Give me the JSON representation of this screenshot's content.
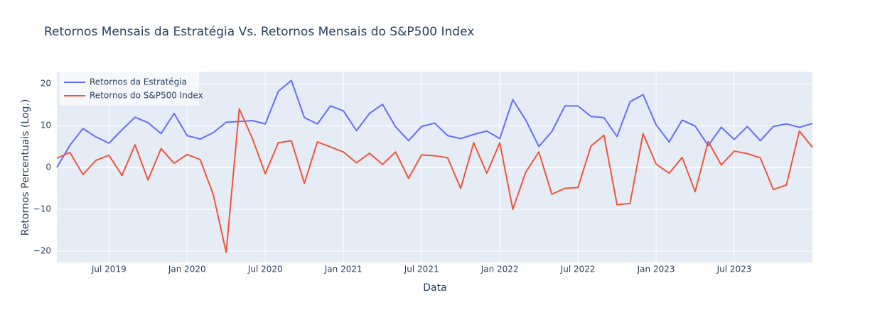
{
  "chart_data": {
    "type": "line",
    "title": "Retornos Mensais da Estratégia Vs. Retornos Mensais do S&P500 Index",
    "x_label": "Data",
    "y_label": "Retornos Percentuais  (Log.)",
    "x": [
      "2019-02",
      "2019-03",
      "2019-04",
      "2019-05",
      "2019-06",
      "2019-07",
      "2019-08",
      "2019-09",
      "2019-10",
      "2019-11",
      "2019-12",
      "2020-01",
      "2020-02",
      "2020-03",
      "2020-04",
      "2020-05",
      "2020-06",
      "2020-07",
      "2020-08",
      "2020-09",
      "2020-10",
      "2020-11",
      "2020-12",
      "2021-01",
      "2021-02",
      "2021-03",
      "2021-04",
      "2021-05",
      "2021-06",
      "2021-07",
      "2021-08",
      "2021-09",
      "2021-10",
      "2021-11",
      "2021-12",
      "2022-01",
      "2022-02",
      "2022-03",
      "2022-04",
      "2022-05",
      "2022-06",
      "2022-07",
      "2022-08",
      "2022-09",
      "2022-10",
      "2022-11",
      "2022-12",
      "2023-01",
      "2023-02",
      "2023-03",
      "2023-04",
      "2023-05",
      "2023-06",
      "2023-07",
      "2023-08",
      "2023-09",
      "2023-10",
      "2023-11",
      "2023-12"
    ],
    "series": [
      {
        "name": "Retornos da Estratégia",
        "color": "#636efa",
        "values": [
          0,
          5.3,
          9.3,
          7.3,
          5.8,
          9.0,
          12.0,
          10.7,
          8.1,
          12.9,
          7.6,
          6.8,
          8.3,
          10.8,
          11.0,
          11.2,
          10.4,
          18.2,
          20.8,
          11.9,
          10.4,
          14.7,
          13.5,
          8.8,
          12.9,
          15.1,
          9.7,
          6.4,
          9.8,
          10.6,
          7.6,
          6.9,
          7.9,
          8.7,
          6.9,
          16.2,
          11.3,
          5.0,
          8.6,
          14.7,
          14.7,
          12.2,
          11.9,
          7.4,
          15.7,
          17.4,
          10.2,
          6.1,
          11.3,
          9.9,
          5.2,
          9.6,
          6.7,
          9.8,
          6.4,
          9.8,
          10.4,
          9.6,
          10.5
        ]
      },
      {
        "name": "Retornos do S&P500 Index",
        "color": "#ef553b",
        "values": [
          2.2,
          3.6,
          -1.7,
          1.7,
          2.9,
          -1.9,
          5.4,
          -3.0,
          4.5,
          1.0,
          3.1,
          1.9,
          -6.4,
          -20.3,
          14.0,
          7.0,
          -1.5,
          5.9,
          6.4,
          -3.8,
          6.1,
          4.9,
          3.7,
          1.1,
          3.4,
          0.7,
          3.7,
          -2.6,
          3.0,
          2.8,
          2.3,
          -5.0,
          5.9,
          -1.4,
          5.9,
          -10.0,
          -1.1,
          3.7,
          -6.4,
          -5.0,
          -4.8,
          5.1,
          7.7,
          -8.9,
          -8.6,
          8.1,
          0.8,
          -1.4,
          2.4,
          -5.8,
          6.2,
          0.6,
          3.9,
          3.3,
          2.3,
          -5.3,
          -4.2,
          8.7,
          4.8
        ]
      }
    ],
    "xlim": [
      "2019-02",
      "2023-12"
    ],
    "xticks": [
      {
        "value": "2019-07",
        "label": "Jul 2019"
      },
      {
        "value": "2020-01",
        "label": "Jan 2020"
      },
      {
        "value": "2020-07",
        "label": "Jul 2020"
      },
      {
        "value": "2021-01",
        "label": "Jan 2021"
      },
      {
        "value": "2021-07",
        "label": "Jul 2021"
      },
      {
        "value": "2022-01",
        "label": "Jan 2022"
      },
      {
        "value": "2022-07",
        "label": "Jul 2022"
      },
      {
        "value": "2023-01",
        "label": "Jan 2023"
      },
      {
        "value": "2023-07",
        "label": "Jul 2023"
      }
    ],
    "ylim": [
      -22.7,
      22.9
    ],
    "yticks": [
      {
        "value": -20,
        "label": "−20"
      },
      {
        "value": -10,
        "label": "−10"
      },
      0,
      10,
      20
    ],
    "grid": true,
    "legend": "top-left"
  }
}
